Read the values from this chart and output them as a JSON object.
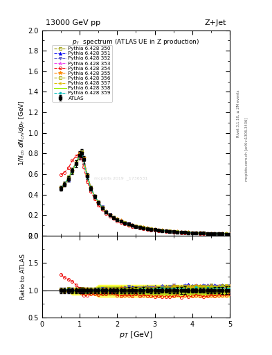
{
  "title_top_left": "13000 GeV pp",
  "title_top_right": "Z+Jet",
  "plot_title": "p_{T}  spectrum (ATLAS UE in Z production)",
  "ylabel_main": "1/N_{ch} dN_{ch}/dp_{T}  [GeV]",
  "ylabel_ratio": "Ratio to ATLAS",
  "xlabel": "p_{T}  [GeV]",
  "xlim": [
    0,
    5.0
  ],
  "ylim_main": [
    0,
    2.0
  ],
  "ylim_ratio": [
    0.5,
    2.0
  ],
  "right_label1": "Rivet 3.1.10, ≥ 2M events",
  "right_label2": "mcplots.cern.ch [arXiv:1306.3436]",
  "watermark": "mcplots 2019  _1736531",
  "pt_values": [
    0.5,
    0.6,
    0.7,
    0.8,
    0.9,
    1.0,
    1.05,
    1.1,
    1.2,
    1.3,
    1.4,
    1.5,
    1.6,
    1.7,
    1.8,
    1.9,
    2.0,
    2.1,
    2.2,
    2.3,
    2.4,
    2.5,
    2.6,
    2.7,
    2.8,
    2.9,
    3.0,
    3.1,
    3.2,
    3.3,
    3.4,
    3.5,
    3.6,
    3.7,
    3.8,
    3.9,
    4.0,
    4.1,
    4.2,
    4.3,
    4.4,
    4.5,
    4.6,
    4.7,
    4.8,
    4.9,
    5.0
  ],
  "atlas_y": [
    0.46,
    0.5,
    0.55,
    0.63,
    0.7,
    0.78,
    0.8,
    0.74,
    0.58,
    0.46,
    0.38,
    0.32,
    0.27,
    0.23,
    0.2,
    0.175,
    0.155,
    0.138,
    0.123,
    0.11,
    0.099,
    0.089,
    0.081,
    0.074,
    0.067,
    0.062,
    0.057,
    0.052,
    0.048,
    0.044,
    0.041,
    0.038,
    0.035,
    0.033,
    0.03,
    0.028,
    0.026,
    0.025,
    0.023,
    0.022,
    0.02,
    0.019,
    0.018,
    0.017,
    0.016,
    0.015,
    0.014
  ],
  "atlas_yerr": [
    0.023,
    0.025,
    0.028,
    0.032,
    0.035,
    0.039,
    0.04,
    0.037,
    0.029,
    0.023,
    0.019,
    0.016,
    0.014,
    0.012,
    0.01,
    0.009,
    0.008,
    0.007,
    0.006,
    0.006,
    0.005,
    0.005,
    0.004,
    0.004,
    0.003,
    0.003,
    0.003,
    0.003,
    0.002,
    0.002,
    0.002,
    0.002,
    0.002,
    0.002,
    0.002,
    0.001,
    0.001,
    0.001,
    0.001,
    0.001,
    0.001,
    0.001,
    0.001,
    0.001,
    0.001,
    0.001,
    0.001
  ],
  "series": [
    {
      "label": "Pythia 6.428 350",
      "color": "#999900",
      "marker": "s",
      "mfc": "none",
      "ls": "--",
      "lw": 0.8,
      "ms": 3,
      "ratio_scale": [
        1.0,
        1.01,
        1.01,
        1.01,
        1.01,
        1.01,
        1.01,
        1.01,
        1.01,
        1.01,
        1.01,
        1.01,
        1.01,
        1.01,
        1.01,
        1.01,
        1.01,
        1.01,
        1.01,
        1.01,
        1.01,
        1.01,
        1.01,
        1.01,
        1.01,
        1.02,
        1.02,
        1.02,
        1.03,
        1.03,
        1.03,
        1.04,
        1.04,
        1.05,
        1.05,
        1.05,
        1.06,
        1.06,
        1.06,
        1.07,
        1.07,
        1.07,
        1.07,
        1.07,
        1.07,
        1.07,
        1.07
      ]
    },
    {
      "label": "Pythia 6.428 351",
      "color": "#0000ee",
      "marker": "^",
      "mfc": "#0000ee",
      "ls": "--",
      "lw": 0.8,
      "ms": 3,
      "ratio_scale": [
        1.0,
        1.0,
        1.0,
        1.01,
        1.01,
        1.01,
        1.01,
        1.01,
        1.01,
        1.02,
        1.02,
        1.02,
        1.02,
        1.02,
        1.02,
        1.03,
        1.03,
        1.04,
        1.04,
        1.05,
        1.05,
        1.06,
        1.06,
        1.06,
        1.06,
        1.06,
        1.06,
        1.07,
        1.07,
        1.07,
        1.07,
        1.08,
        1.08,
        1.08,
        1.09,
        1.09,
        1.09,
        1.09,
        1.09,
        1.09,
        1.09,
        1.09,
        1.09,
        1.09,
        1.09,
        1.09,
        1.09
      ]
    },
    {
      "label": "Pythia 6.428 352",
      "color": "#6666cc",
      "marker": "v",
      "mfc": "#6666cc",
      "ls": "--",
      "lw": 0.8,
      "ms": 3,
      "ratio_scale": [
        1.0,
        1.0,
        1.0,
        1.0,
        1.0,
        1.0,
        1.0,
        1.0,
        1.01,
        1.01,
        1.01,
        1.01,
        1.01,
        1.01,
        1.02,
        1.02,
        1.02,
        1.03,
        1.03,
        1.04,
        1.04,
        1.04,
        1.05,
        1.05,
        1.05,
        1.05,
        1.05,
        1.06,
        1.06,
        1.06,
        1.06,
        1.07,
        1.07,
        1.07,
        1.08,
        1.08,
        1.08,
        1.08,
        1.08,
        1.08,
        1.08,
        1.08,
        1.08,
        1.08,
        1.08,
        1.08,
        1.08
      ]
    },
    {
      "label": "Pythia 6.428 353",
      "color": "#ee44ee",
      "marker": "^",
      "mfc": "none",
      "ls": "--",
      "lw": 0.8,
      "ms": 3,
      "ratio_scale": [
        1.0,
        1.0,
        1.0,
        1.0,
        1.0,
        1.0,
        1.0,
        1.0,
        1.0,
        1.0,
        1.0,
        1.0,
        1.0,
        1.0,
        1.01,
        1.01,
        1.01,
        1.01,
        1.02,
        1.02,
        1.02,
        1.03,
        1.03,
        1.03,
        1.03,
        1.03,
        1.04,
        1.04,
        1.04,
        1.04,
        1.04,
        1.05,
        1.05,
        1.05,
        1.05,
        1.05,
        1.05,
        1.05,
        1.05,
        1.05,
        1.05,
        1.05,
        1.05,
        1.05,
        1.05,
        1.05,
        1.05
      ]
    },
    {
      "label": "Pythia 6.428 354",
      "color": "#ee0000",
      "marker": "o",
      "mfc": "none",
      "ls": "--",
      "lw": 0.8,
      "ms": 3,
      "ratio_scale": [
        1.3,
        1.25,
        1.2,
        1.15,
        1.1,
        1.05,
        0.95,
        0.9,
        0.92,
        0.93,
        0.93,
        0.93,
        0.93,
        0.93,
        0.93,
        0.93,
        0.92,
        0.91,
        0.9,
        0.9,
        0.89,
        0.89,
        0.89,
        0.89,
        0.89,
        0.89,
        0.89,
        0.89,
        0.89,
        0.89,
        0.89,
        0.89,
        0.89,
        0.89,
        0.9,
        0.9,
        0.9,
        0.9,
        0.9,
        0.9,
        0.9,
        0.9,
        0.91,
        0.91,
        0.91,
        0.91,
        0.91
      ]
    },
    {
      "label": "Pythia 6.428 355",
      "color": "#ff8800",
      "marker": "*",
      "mfc": "#ff8800",
      "ls": "--",
      "lw": 0.8,
      "ms": 4,
      "ratio_scale": [
        1.0,
        1.0,
        1.01,
        1.01,
        1.01,
        1.01,
        1.01,
        1.01,
        1.01,
        1.01,
        1.01,
        1.01,
        1.01,
        1.01,
        1.01,
        1.01,
        1.01,
        1.02,
        1.02,
        1.02,
        1.03,
        1.03,
        1.03,
        1.03,
        1.03,
        1.04,
        1.04,
        1.04,
        1.05,
        1.05,
        1.05,
        1.06,
        1.06,
        1.06,
        1.06,
        1.06,
        1.07,
        1.07,
        1.07,
        1.07,
        1.07,
        1.07,
        1.07,
        1.07,
        1.07,
        1.07,
        1.07
      ]
    },
    {
      "label": "Pythia 6.428 356",
      "color": "#aaaa00",
      "marker": "s",
      "mfc": "none",
      "ls": "--",
      "lw": 0.8,
      "ms": 3,
      "ratio_scale": [
        1.0,
        1.0,
        1.01,
        1.01,
        1.01,
        1.01,
        1.01,
        1.01,
        1.01,
        1.01,
        1.01,
        1.01,
        1.01,
        1.01,
        1.01,
        1.01,
        1.02,
        1.02,
        1.02,
        1.03,
        1.03,
        1.04,
        1.04,
        1.04,
        1.04,
        1.04,
        1.05,
        1.05,
        1.05,
        1.05,
        1.05,
        1.06,
        1.06,
        1.06,
        1.06,
        1.07,
        1.07,
        1.07,
        1.07,
        1.07,
        1.07,
        1.07,
        1.07,
        1.07,
        1.07,
        1.07,
        1.07
      ]
    },
    {
      "label": "Pythia 6.428 357",
      "color": "#ddbb00",
      "marker": "D",
      "mfc": "none",
      "ls": "--",
      "lw": 0.8,
      "ms": 2,
      "ratio_scale": [
        1.0,
        1.0,
        1.0,
        1.01,
        1.01,
        1.01,
        1.01,
        1.01,
        1.01,
        1.01,
        1.01,
        1.01,
        1.01,
        1.01,
        1.01,
        1.01,
        1.01,
        1.02,
        1.02,
        1.02,
        1.03,
        1.03,
        1.03,
        1.03,
        1.03,
        1.04,
        1.04,
        1.04,
        1.04,
        1.04,
        1.05,
        1.05,
        1.05,
        1.05,
        1.05,
        1.06,
        1.06,
        1.06,
        1.06,
        1.06,
        1.06,
        1.06,
        1.06,
        1.06,
        1.06,
        1.06,
        1.06
      ]
    },
    {
      "label": "Pythia 6.428 358",
      "color": "#99ee00",
      "marker": "none",
      "mfc": "none",
      "ls": "-",
      "lw": 0.8,
      "ms": 3,
      "ratio_scale": [
        1.0,
        1.0,
        1.0,
        1.0,
        1.0,
        1.0,
        1.0,
        1.0,
        1.0,
        1.0,
        1.0,
        1.0,
        1.0,
        1.01,
        1.01,
        1.01,
        1.01,
        1.01,
        1.02,
        1.02,
        1.02,
        1.02,
        1.03,
        1.03,
        1.03,
        1.03,
        1.03,
        1.04,
        1.04,
        1.04,
        1.04,
        1.05,
        1.05,
        1.05,
        1.05,
        1.05,
        1.05,
        1.05,
        1.05,
        1.05,
        1.05,
        1.05,
        1.05,
        1.05,
        1.05,
        1.05,
        1.05
      ]
    },
    {
      "label": "Pythia 6.428 359",
      "color": "#00bbbb",
      "marker": "o",
      "mfc": "#00bbbb",
      "ls": "--",
      "lw": 0.8,
      "ms": 2,
      "ratio_scale": [
        1.0,
        1.0,
        1.0,
        1.0,
        1.0,
        1.0,
        1.0,
        1.0,
        1.0,
        1.0,
        1.0,
        1.0,
        1.0,
        1.0,
        1.0,
        1.0,
        1.0,
        1.01,
        1.01,
        1.01,
        1.01,
        1.02,
        1.02,
        1.02,
        1.02,
        1.03,
        1.03,
        1.03,
        1.03,
        1.03,
        1.03,
        1.04,
        1.04,
        1.04,
        1.04,
        1.04,
        1.04,
        1.04,
        1.04,
        1.04,
        1.04,
        1.04,
        1.04,
        1.04,
        1.04,
        1.04,
        1.04
      ]
    }
  ]
}
